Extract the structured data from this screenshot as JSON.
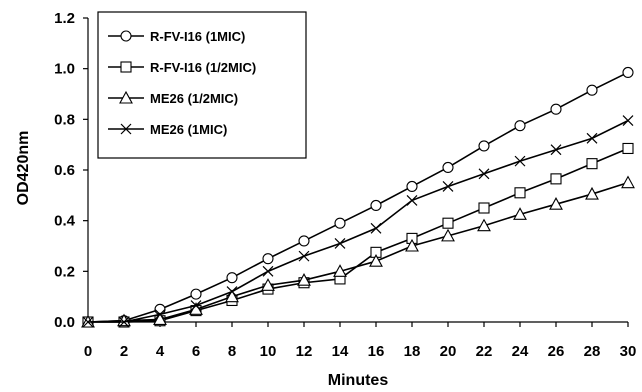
{
  "chart_data": {
    "type": "line",
    "title": "",
    "xlabel": "Minutes",
    "ylabel": "OD420nm",
    "xlim": [
      0,
      30
    ],
    "ylim": [
      0,
      1.2
    ],
    "x_ticks": [
      "0",
      "2",
      "4",
      "6",
      "8",
      "10",
      "12",
      "14",
      "16",
      "18",
      "20",
      "22",
      "24",
      "26",
      "28",
      "30"
    ],
    "y_ticks": [
      "0.0",
      "0.2",
      "0.4",
      "0.6",
      "0.8",
      "1.0",
      "1.2"
    ],
    "grid": false,
    "legend_position": "top-left",
    "x": [
      0,
      2,
      4,
      6,
      8,
      10,
      12,
      14,
      16,
      18,
      20,
      22,
      24,
      26,
      28,
      30
    ],
    "series": [
      {
        "name": "R-FV-I16 (1MIC)",
        "marker": "circle",
        "values": [
          0.0,
          0.005,
          0.05,
          0.11,
          0.175,
          0.25,
          0.32,
          0.39,
          0.46,
          0.535,
          0.61,
          0.695,
          0.775,
          0.84,
          0.915,
          0.985
        ]
      },
      {
        "name": "R-FV-I16 (1/2MIC)",
        "marker": "square",
        "values": [
          0.0,
          0.0,
          0.005,
          0.045,
          0.085,
          0.13,
          0.155,
          0.17,
          0.275,
          0.33,
          0.39,
          0.45,
          0.51,
          0.565,
          0.625,
          0.685
        ]
      },
      {
        "name": "ME26 (1/2MIC)",
        "marker": "triangle",
        "values": [
          0.0,
          0.005,
          0.01,
          0.05,
          0.1,
          0.145,
          0.165,
          0.2,
          0.24,
          0.3,
          0.34,
          0.38,
          0.425,
          0.465,
          0.505,
          0.55
        ]
      },
      {
        "name": "ME26 (1MIC)",
        "marker": "x",
        "values": [
          0.0,
          0.0,
          0.03,
          0.065,
          0.12,
          0.2,
          0.26,
          0.31,
          0.37,
          0.48,
          0.535,
          0.585,
          0.635,
          0.68,
          0.725,
          0.795
        ]
      }
    ]
  },
  "colors": {
    "line": "#000000",
    "background": "#ffffff"
  }
}
